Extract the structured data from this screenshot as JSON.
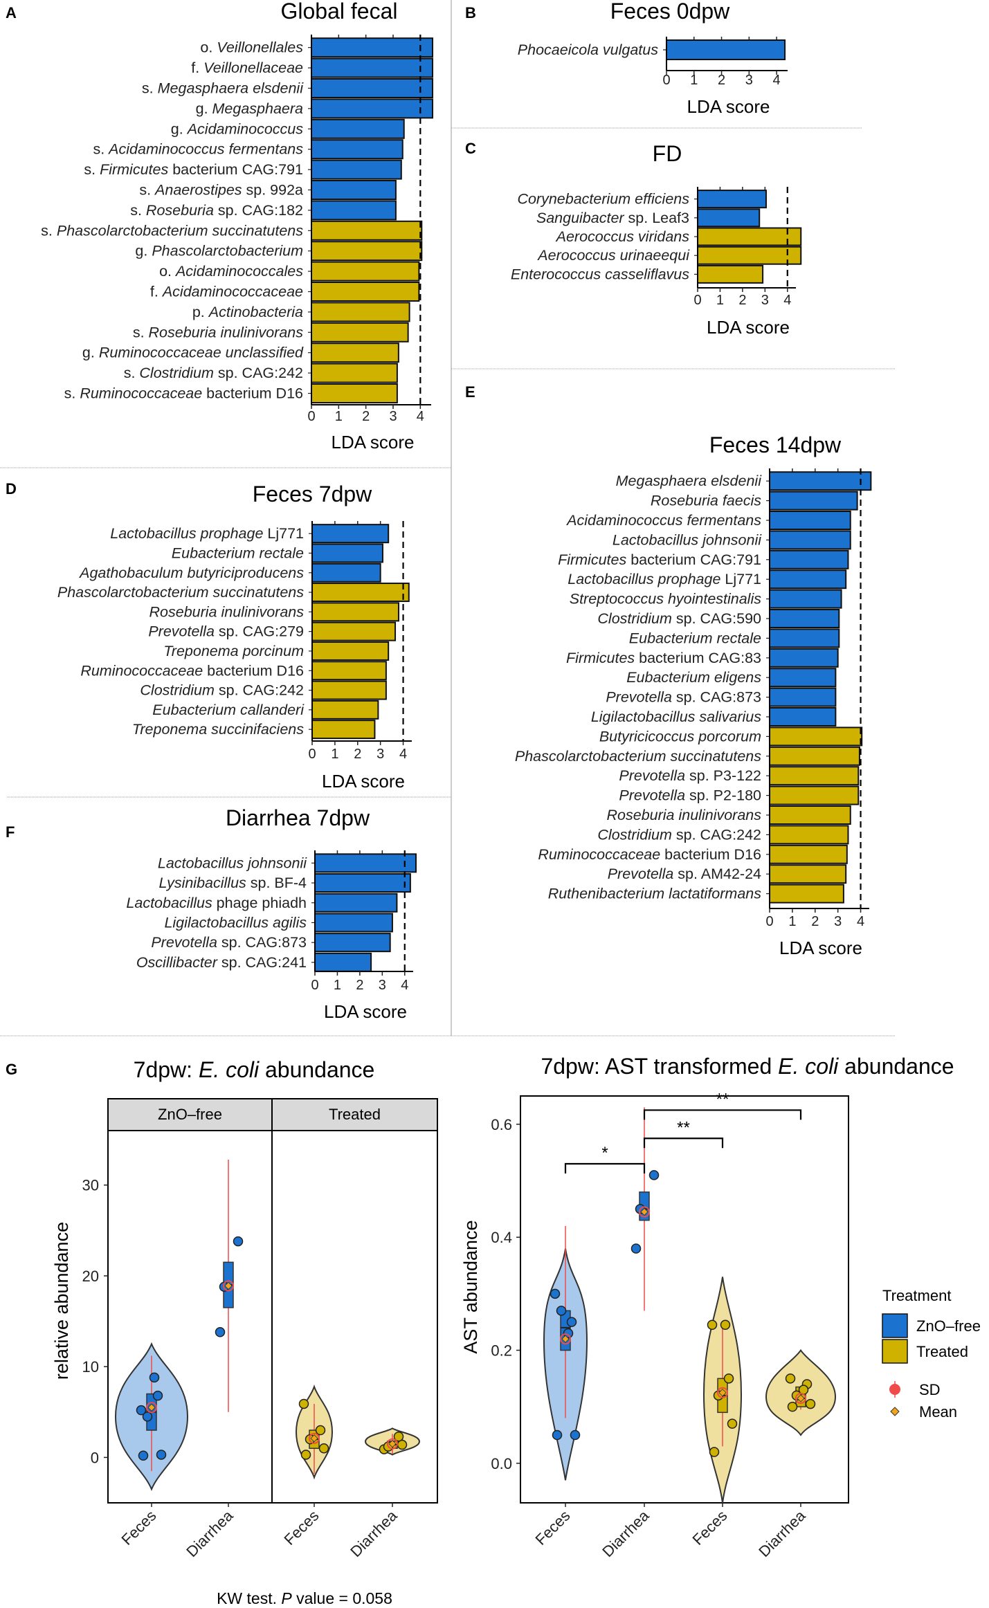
{
  "colors": {
    "zno": "#1c73cf",
    "treated": "#cfb200",
    "zno_violin": "#a8c9ec",
    "treated_violin": "#f0e09f",
    "sd": "#f04a4a",
    "mean": "#f2a51a",
    "bar_border": "#111111",
    "strip_bg": "#d9d9d9",
    "divider": "#9a9a9a"
  },
  "lda_axis_label": "LDA score",
  "chart_data": [
    {
      "id": "A",
      "panel": "A",
      "type": "bar",
      "orientation": "horizontal",
      "title": "Global fecal",
      "xlabel": "LDA score",
      "xlim": [
        0,
        4.5
      ],
      "threshold": 4,
      "ticks": [
        "0",
        "1",
        "2",
        "3",
        "4"
      ],
      "categories": [
        {
          "pre": "o. ",
          "it": "Veillonellales",
          "post": ""
        },
        {
          "pre": "f. ",
          "it": "Veillonellaceae",
          "post": ""
        },
        {
          "pre": "s. ",
          "it": "Megasphaera elsdenii",
          "post": ""
        },
        {
          "pre": "g. ",
          "it": "Megasphaera",
          "post": ""
        },
        {
          "pre": "g. ",
          "it": "Acidaminococcus",
          "post": ""
        },
        {
          "pre": "s. ",
          "it": "Acidaminococcus fermentans",
          "post": ""
        },
        {
          "pre": "s. ",
          "it": "Firmicutes",
          "post": " bacterium CAG:791"
        },
        {
          "pre": "s. ",
          "it": "Anaerostipes",
          "post": " sp. 992a"
        },
        {
          "pre": "s. ",
          "it": "Roseburia",
          "post": " sp. CAG:182"
        },
        {
          "pre": "s. ",
          "it": "Phascolarctobacterium succinatutens",
          "post": ""
        },
        {
          "pre": "g. ",
          "it": "Phascolarctobacterium",
          "post": ""
        },
        {
          "pre": "o. ",
          "it": "Acidaminococcales",
          "post": ""
        },
        {
          "pre": "f. ",
          "it": "Acidaminococcaceae",
          "post": ""
        },
        {
          "pre": "p. ",
          "it": "Actinobacteria",
          "post": ""
        },
        {
          "pre": "s. ",
          "it": "Roseburia inulinivorans",
          "post": ""
        },
        {
          "pre": "g. ",
          "it": "Ruminococcaceae unclassified",
          "post": ""
        },
        {
          "pre": "s. ",
          "it": "Clostridium",
          "post": " sp. CAG:242"
        },
        {
          "pre": "s. ",
          "it": "Ruminococcaceae",
          "post": " bacterium D16"
        }
      ],
      "values": [
        4.45,
        4.45,
        4.45,
        4.45,
        3.4,
        3.35,
        3.3,
        3.1,
        3.1,
        4.05,
        4.05,
        3.95,
        3.95,
        3.6,
        3.55,
        3.2,
        3.15,
        3.15
      ],
      "groups": [
        "zno",
        "zno",
        "zno",
        "zno",
        "zno",
        "zno",
        "zno",
        "zno",
        "zno",
        "treated",
        "treated",
        "treated",
        "treated",
        "treated",
        "treated",
        "treated",
        "treated",
        "treated"
      ]
    },
    {
      "id": "B",
      "panel": "B",
      "type": "bar",
      "orientation": "horizontal",
      "title": "Feces 0dpw",
      "xlabel": "LDA score",
      "xlim": [
        0,
        4.5
      ],
      "threshold": null,
      "ticks": [
        "0",
        "1",
        "2",
        "3",
        "4"
      ],
      "categories": [
        {
          "pre": "",
          "it": "Phocaeicola vulgatus",
          "post": ""
        }
      ],
      "values": [
        4.3
      ],
      "groups": [
        "zno"
      ]
    },
    {
      "id": "C",
      "panel": "C",
      "type": "bar",
      "orientation": "horizontal",
      "title": "FD",
      "xlabel": "LDA score",
      "xlim": [
        0,
        4.5
      ],
      "threshold": 4,
      "ticks": [
        "0",
        "1",
        "2",
        "3",
        "4"
      ],
      "categories": [
        {
          "pre": "",
          "it": "Corynebacterium efficiens",
          "post": ""
        },
        {
          "pre": "",
          "it": "Sanguibacter",
          "post": " sp. Leaf3"
        },
        {
          "pre": "",
          "it": "Aerococcus viridans",
          "post": ""
        },
        {
          "pre": "",
          "it": "Aerococcus urinaeequi",
          "post": ""
        },
        {
          "pre": "",
          "it": "Enterococcus casseliflavus",
          "post": ""
        }
      ],
      "values": [
        3.05,
        2.75,
        4.6,
        4.6,
        2.9
      ],
      "groups": [
        "zno",
        "zno",
        "treated",
        "treated",
        "treated"
      ]
    },
    {
      "id": "D",
      "panel": "D",
      "type": "bar",
      "orientation": "horizontal",
      "title": "Feces 7dpw",
      "xlabel": "LDA score",
      "xlim": [
        0,
        4.5
      ],
      "threshold": 4,
      "ticks": [
        "0",
        "1",
        "2",
        "3",
        "4"
      ],
      "categories": [
        {
          "pre": "",
          "it": "Lactobacillus prophage",
          "post": " Lj771"
        },
        {
          "pre": "",
          "it": "Eubacterium rectale",
          "post": ""
        },
        {
          "pre": "",
          "it": "Agathobaculum butyriciproducens",
          "post": ""
        },
        {
          "pre": "",
          "it": "Phascolarctobacterium succinatutens",
          "post": ""
        },
        {
          "pre": "",
          "it": "Roseburia inulinivorans",
          "post": ""
        },
        {
          "pre": "",
          "it": "Prevotella",
          "post": " sp. CAG:279"
        },
        {
          "pre": "",
          "it": "Treponema porcinum",
          "post": ""
        },
        {
          "pre": "",
          "it": "Ruminococcaceae",
          "post": " bacterium D16"
        },
        {
          "pre": "",
          "it": "Clostridium",
          "post": " sp. CAG:242"
        },
        {
          "pre": "",
          "it": "Eubacterium callanderi",
          "post": ""
        },
        {
          "pre": "",
          "it": "Treponema succinifaciens",
          "post": ""
        }
      ],
      "values": [
        3.35,
        3.1,
        3.0,
        4.25,
        3.8,
        3.65,
        3.35,
        3.25,
        3.25,
        2.9,
        2.75
      ],
      "groups": [
        "zno",
        "zno",
        "zno",
        "treated",
        "treated",
        "treated",
        "treated",
        "treated",
        "treated",
        "treated",
        "treated"
      ]
    },
    {
      "id": "F",
      "panel": "F",
      "type": "bar",
      "orientation": "horizontal",
      "title": "Diarrhea 7dpw",
      "xlabel": "LDA score",
      "xlim": [
        0,
        4.5
      ],
      "threshold": 4,
      "ticks": [
        "0",
        "1",
        "2",
        "3",
        "4"
      ],
      "categories": [
        {
          "pre": "",
          "it": "Lactobacillus johnsonii",
          "post": ""
        },
        {
          "pre": "",
          "it": "Lysinibacillus",
          "post": " sp. BF-4"
        },
        {
          "pre": "",
          "it": "Lactobacillus",
          "post": " phage phiadh"
        },
        {
          "pre": "",
          "it": "Ligilactobacillus agilis",
          "post": ""
        },
        {
          "pre": "",
          "it": "Prevotella",
          "post": " sp. CAG:873"
        },
        {
          "pre": "",
          "it": "Oscillibacter",
          "post": " sp. CAG:241"
        }
      ],
      "values": [
        4.5,
        4.25,
        3.65,
        3.45,
        3.35,
        2.5
      ],
      "groups": [
        "zno",
        "zno",
        "zno",
        "zno",
        "zno",
        "zno"
      ]
    },
    {
      "id": "E",
      "panel": "E",
      "type": "bar",
      "orientation": "horizontal",
      "title": "Feces 14dpw",
      "xlabel": "LDA score",
      "xlim": [
        0,
        4.5
      ],
      "threshold": 4,
      "ticks": [
        "0",
        "1",
        "2",
        "3",
        "4"
      ],
      "categories": [
        {
          "pre": "",
          "it": "Megasphaera elsdenii",
          "post": ""
        },
        {
          "pre": "",
          "it": "Roseburia faecis",
          "post": ""
        },
        {
          "pre": "",
          "it": "Acidaminococcus fermentans",
          "post": ""
        },
        {
          "pre": "",
          "it": "Lactobacillus johnsonii",
          "post": ""
        },
        {
          "pre": "",
          "it": "Firmicutes",
          "post": " bacterium CAG:791"
        },
        {
          "pre": "",
          "it": "Lactobacillus prophage",
          "post": " Lj771"
        },
        {
          "pre": "",
          "it": "Streptococcus hyointestinalis",
          "post": ""
        },
        {
          "pre": "",
          "it": "Clostridium",
          "post": " sp. CAG:590"
        },
        {
          "pre": "",
          "it": "Eubacterium rectale",
          "post": ""
        },
        {
          "pre": "",
          "it": "Firmicutes",
          "post": " bacterium CAG:83"
        },
        {
          "pre": "",
          "it": "Eubacterium eligens",
          "post": ""
        },
        {
          "pre": "",
          "it": "Prevotella",
          "post": " sp. CAG:873"
        },
        {
          "pre": "",
          "it": "Ligilactobacillus salivarius",
          "post": ""
        },
        {
          "pre": "",
          "it": "Butyricicoccus porcorum",
          "post": ""
        },
        {
          "pre": "",
          "it": "Phascolarctobacterium succinatutens",
          "post": ""
        },
        {
          "pre": "",
          "it": "Prevotella",
          "post": " sp. P3-122"
        },
        {
          "pre": "",
          "it": "Prevotella",
          "post": " sp. P2-180"
        },
        {
          "pre": "",
          "it": "Roseburia inulinivorans",
          "post": ""
        },
        {
          "pre": "",
          "it": "Clostridium",
          "post": " sp. CAG:242"
        },
        {
          "pre": "",
          "it": "Ruminococcaceae",
          "post": " bacterium D16"
        },
        {
          "pre": "",
          "it": "Prevotella",
          "post": " sp. AM42-24"
        },
        {
          "pre": "",
          "it": "Ruthenibacterium lactatiformans",
          "post": ""
        }
      ],
      "values": [
        4.45,
        3.85,
        3.55,
        3.55,
        3.45,
        3.35,
        3.15,
        3.05,
        3.05,
        3.0,
        2.9,
        2.9,
        2.9,
        4.05,
        3.95,
        3.9,
        3.9,
        3.55,
        3.45,
        3.4,
        3.35,
        3.25
      ],
      "groups": [
        "zno",
        "zno",
        "zno",
        "zno",
        "zno",
        "zno",
        "zno",
        "zno",
        "zno",
        "zno",
        "zno",
        "zno",
        "zno",
        "treated",
        "treated",
        "treated",
        "treated",
        "treated",
        "treated",
        "treated",
        "treated",
        "treated"
      ]
    },
    {
      "id": "G1",
      "panel": "G",
      "type": "violin",
      "title_pre": "7dpw: ",
      "title_it": "E. coli",
      "title_post": " abundance",
      "ylabel": "relative abundance",
      "ylim": [
        -5,
        36
      ],
      "yticks": [
        0,
        10,
        20,
        30
      ],
      "facets": [
        "ZnO–free",
        "Treated"
      ],
      "groups": [
        {
          "facet": 0,
          "label": "Feces",
          "group": "zno",
          "points": [
            0.2,
            0.3,
            4.5,
            6.8,
            5.2,
            8.8
          ],
          "mean": 5.5,
          "sd_range": [
            -1.5,
            11.2
          ],
          "box": [
            3.0,
            5.0,
            7.0
          ],
          "violin": [
            -3.5,
            12.5
          ]
        },
        {
          "facet": 0,
          "label": "Diarrhea",
          "group": "zno",
          "points": [
            13.8,
            23.8,
            18.8
          ],
          "mean": 18.9,
          "sd_range": [
            5.0,
            32.8
          ],
          "box": [
            16.5,
            19.0,
            21.5
          ],
          "violin": null
        },
        {
          "facet": 1,
          "label": "Feces",
          "group": "treated",
          "points": [
            0.3,
            1.0,
            2.0,
            3.0,
            5.9
          ],
          "mean": 2.1,
          "sd_range": [
            -1.8,
            5.9
          ],
          "box": [
            1.0,
            2.0,
            3.0
          ],
          "violin": [
            -2.2,
            7.8
          ]
        },
        {
          "facet": 1,
          "label": "Diarrhea",
          "group": "treated",
          "points": [
            0.9,
            1.4,
            1.2,
            2.3
          ],
          "mean": 1.5,
          "sd_range": [
            0.4,
            2.6
          ],
          "box": [
            1.0,
            1.4,
            1.8
          ],
          "violin": [
            0.3,
            3.2
          ]
        }
      ],
      "footer_pre": "KW test. ",
      "footer_it": "P",
      "footer_post": " value = 0.058"
    },
    {
      "id": "G2",
      "panel": "G",
      "type": "violin",
      "title_pre": "7dpw: AST transformed ",
      "title_it": "E. coli",
      "title_post": " abundance",
      "ylabel": "AST abundance",
      "ylim": [
        -0.07,
        0.65
      ],
      "yticks": [
        0.0,
        0.2,
        0.4,
        0.6
      ],
      "ytick_labels": [
        "0.0",
        "0.2",
        "0.4",
        "0.6"
      ],
      "groups": [
        {
          "label": "Feces",
          "group": "zno",
          "points": [
            0.05,
            0.05,
            0.27,
            0.25,
            0.3,
            0.23
          ],
          "mean": 0.22,
          "sd_range": [
            0.08,
            0.42
          ],
          "box": [
            0.2,
            0.24,
            0.27
          ],
          "violin": [
            -0.03,
            0.38
          ]
        },
        {
          "label": "Diarrhea",
          "group": "zno",
          "points": [
            0.38,
            0.51,
            0.45
          ],
          "mean": 0.445,
          "sd_range": [
            0.27,
            0.63
          ],
          "box": [
            0.43,
            0.45,
            0.48
          ],
          "violin": null
        },
        {
          "label": "Feces",
          "group": "treated",
          "points": [
            0.02,
            0.07,
            0.12,
            0.15,
            0.245,
            0.245
          ],
          "mean": 0.125,
          "sd_range": [
            0.03,
            0.245
          ],
          "box": [
            0.09,
            0.12,
            0.15
          ],
          "violin": [
            -0.07,
            0.33
          ]
        },
        {
          "label": "Diarrhea",
          "group": "treated",
          "points": [
            0.1,
            0.105,
            0.12,
            0.14,
            0.15,
            0.13
          ],
          "mean": 0.115,
          "sd_range": [
            0.095,
            0.135
          ],
          "box": [
            0.1,
            0.115,
            0.135
          ],
          "violin": [
            0.05,
            0.2
          ]
        }
      ],
      "brackets": [
        {
          "from": 0,
          "to": 1,
          "y": 0.53,
          "label": "*"
        },
        {
          "from": 1,
          "to": 2,
          "y": 0.575,
          "label": "**"
        },
        {
          "from": 1,
          "to": 3,
          "y": 0.625,
          "label": "**"
        }
      ]
    }
  ],
  "legend": {
    "title": "Treatment",
    "items": [
      {
        "label": "ZnO–free",
        "group": "zno"
      },
      {
        "label": "Treated",
        "group": "treated"
      }
    ],
    "sd_label": "SD",
    "mean_label": "Mean"
  }
}
